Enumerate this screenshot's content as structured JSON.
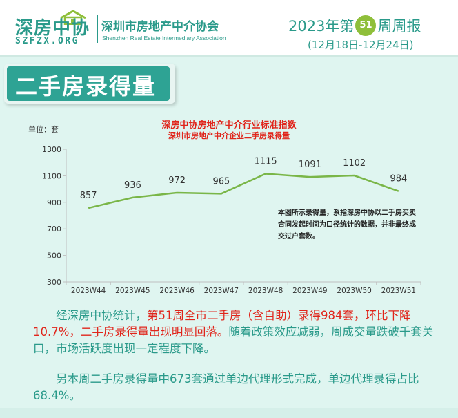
{
  "header": {
    "logo_cn": "深房中协",
    "logo_en": "SZFZX.ORG",
    "org_cn": "深圳市房地产中介协会",
    "org_en": "Shenzhen Real Estate Intermediary Association",
    "week_prefix": "2023年第",
    "week_number": "51",
    "week_suffix": "周周报",
    "week_range": "(12月18日-12月24日)",
    "brand_color": "#2a9a8a",
    "badge_color": "#8fbf3a"
  },
  "section": {
    "title": "二手房录得量",
    "banner_color": "#2ea394"
  },
  "chart_data": {
    "type": "line",
    "title": "深房中协房地产中介行业标准指数",
    "subtitle": "深圳市房地产中介企业二手房录得量",
    "unit_label": "单位：套",
    "categories": [
      "2023W44",
      "2023W45",
      "2023W46",
      "2023W47",
      "2023W48",
      "2023W49",
      "2023W50",
      "2023W51"
    ],
    "series": [
      {
        "values": [
          857,
          936,
          972,
          965,
          1115,
          1091,
          1102,
          984
        ],
        "color": "#7ab648"
      }
    ],
    "y_ticks": [
      300,
      500,
      700,
      900,
      1100,
      1300
    ],
    "ylim": [
      300,
      1300
    ],
    "grid": false,
    "note": "本图所示录得量，系指深房中协以二手房买卖合同发起时间为口径统计的数据，并非最终成交过户套数。"
  },
  "text": {
    "p1_a": "经深房中协统计，",
    "p1_b": "第51周全市二手房（含自助）录得984套，环比下降10.7%，二手房录得量出现明显回落。",
    "p1_c": "随着政策效应减弱，周成交量跌破千套关口，市场活跃度出现一定程度下降。",
    "p2": "另本周二手房录得量中673套通过单边代理形式完成，单边代理录得占比68.4%。",
    "highlight_color": "#e0251b"
  }
}
